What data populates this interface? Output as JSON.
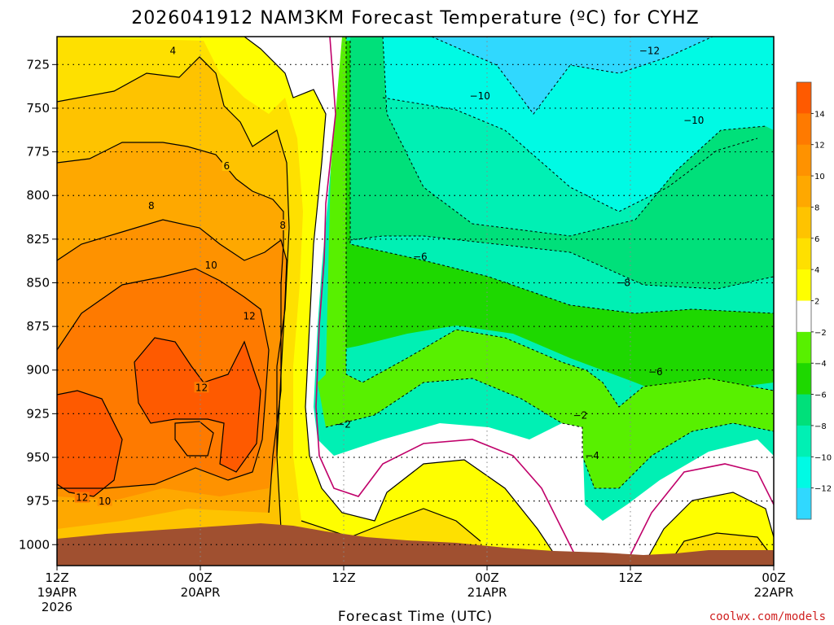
{
  "chart_data": {
    "type": "heatmap",
    "title": "2026041912 NAM3KM Forecast Temperature (ºC) for CYHZ",
    "xlabel": "Forecast Time (UTC)",
    "y_axis": {
      "ticks": [
        725,
        750,
        775,
        800,
        825,
        850,
        875,
        900,
        925,
        950,
        975,
        1000
      ],
      "range": [
        709,
        1012
      ],
      "inverted": true,
      "grid": "dotted"
    },
    "x_axis": {
      "range": [
        0,
        60
      ],
      "ticks": [
        {
          "x": 0,
          "l1": "12Z",
          "l2": "19APR",
          "l3": "2026"
        },
        {
          "x": 12,
          "l1": "00Z",
          "l2": "20APR",
          "l3": ""
        },
        {
          "x": 24,
          "l1": "12Z",
          "l2": "",
          "l3": ""
        },
        {
          "x": 36,
          "l1": "00Z",
          "l2": "21APR",
          "l3": ""
        },
        {
          "x": 48,
          "l1": "12Z",
          "l2": "",
          "l3": ""
        },
        {
          "x": 60,
          "l1": "00Z",
          "l2": "22APR",
          "l3": ""
        }
      ],
      "grid": "dotted"
    },
    "colorbar": {
      "labels": [
        "14",
        "12",
        "10",
        "8",
        "6",
        "4",
        "2",
        "−2",
        "−4",
        "−6",
        "−8",
        "−10",
        "−12"
      ],
      "colors": [
        "#fe5a00",
        "#fe7a00",
        "#fe9200",
        "#fea800",
        "#fec300",
        "#fee000",
        "#fefe00",
        "#ffffff",
        "#58f000",
        "#1ed800",
        "#00e07a",
        "#00f0b4",
        "#00fae4",
        "#30d8fe"
      ]
    },
    "contour_labels": [
      {
        "text": "4",
        "x": 9.7,
        "p": 718
      },
      {
        "text": "6",
        "x": 14.2,
        "p": 784
      },
      {
        "text": "8",
        "x": 7.9,
        "p": 807
      },
      {
        "text": "8",
        "x": 18.9,
        "p": 818
      },
      {
        "text": "10",
        "x": 12.9,
        "p": 841
      },
      {
        "text": "12",
        "x": 16.1,
        "p": 870
      },
      {
        "text": "12",
        "x": 12.1,
        "p": 911
      },
      {
        "text": "12",
        "x": 2.1,
        "p": 974
      },
      {
        "text": "10",
        "x": 4.0,
        "p": 976
      },
      {
        "text": "−2",
        "x": 24.0,
        "p": 932
      },
      {
        "text": "−10",
        "x": 35.4,
        "p": 744
      },
      {
        "text": "−12",
        "x": 49.6,
        "p": 718
      },
      {
        "text": "−10",
        "x": 53.3,
        "p": 758
      },
      {
        "text": "−6",
        "x": 30.4,
        "p": 836
      },
      {
        "text": "−8",
        "x": 47.4,
        "p": 851
      },
      {
        "text": "−6",
        "x": 50.1,
        "p": 902
      },
      {
        "text": "−2",
        "x": 43.8,
        "p": 927
      },
      {
        "text": "−4",
        "x": 44.8,
        "p": 950
      }
    ],
    "colors": {
      "terrain": "#a05030",
      "warm_outline": "#000000",
      "zero_line": "#c0006a"
    }
  },
  "credit": "coolwx.com/models"
}
